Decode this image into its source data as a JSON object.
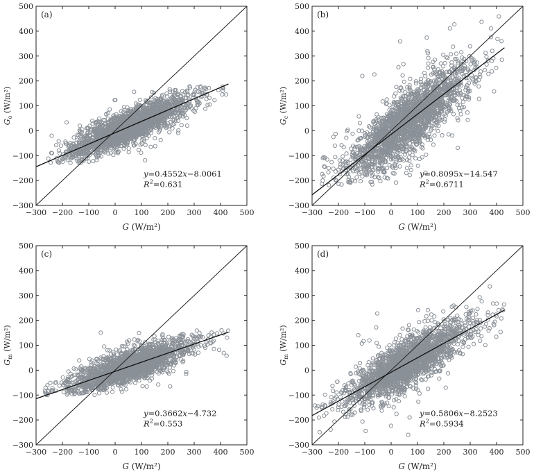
{
  "figure": {
    "x_axis_title": "G",
    "x_axis_unit": "(W/m²)",
    "y_axis_unit": "(W/m²)"
  },
  "chart_data": [
    {
      "type": "scatter",
      "panel": "(a)",
      "ylabel_symbol": "G",
      "ylabel_sub": "o",
      "xlim": [
        -300,
        500
      ],
      "ylim": [
        -300,
        500
      ],
      "xticks": [
        -300,
        -200,
        -100,
        0,
        100,
        200,
        300,
        400,
        500
      ],
      "yticks": [
        -300,
        -200,
        -100,
        0,
        100,
        200,
        300,
        400,
        500
      ],
      "fit": {
        "slope": 0.4552,
        "intercept": -8.0061,
        "x_range": [
          -300,
          430
        ]
      },
      "identity_line": true,
      "equation_line": "y=0.4552x−8.0061",
      "r2_value": "=0.631",
      "cloud": {
        "x_min": -270,
        "x_max": 430,
        "residual_sd": 32,
        "center_x": 50,
        "spread_x": 110,
        "n": 2200,
        "y_floor": -130,
        "y_ceil": 180
      },
      "point_color": "#8a9097"
    },
    {
      "type": "scatter",
      "panel": "(b)",
      "ylabel_symbol": "G",
      "ylabel_sub": "c",
      "xlim": [
        -300,
        500
      ],
      "ylim": [
        -300,
        500
      ],
      "xticks": [
        -300,
        -200,
        -100,
        0,
        100,
        200,
        300,
        400,
        500
      ],
      "yticks": [
        -300,
        -200,
        -100,
        0,
        100,
        200,
        300,
        400,
        500
      ],
      "fit": {
        "slope": 0.8095,
        "intercept": -14.547,
        "x_range": [
          -300,
          430
        ]
      },
      "identity_line": true,
      "equation_line": "y=0.8095x−14.547",
      "r2_value": "=0.6711",
      "cloud": {
        "x_min": -280,
        "x_max": 430,
        "residual_sd": 60,
        "center_x": 60,
        "spread_x": 110,
        "n": 2200,
        "y_floor": -220,
        "y_ceil": 490
      },
      "point_color": "#8a9097"
    },
    {
      "type": "scatter",
      "panel": "(c)",
      "ylabel_symbol": "G",
      "ylabel_sub": "m",
      "xlim": [
        -300,
        500
      ],
      "ylim": [
        -300,
        500
      ],
      "xticks": [
        -300,
        -200,
        -100,
        0,
        100,
        200,
        300,
        400,
        500
      ],
      "yticks": [
        -300,
        -200,
        -100,
        0,
        100,
        200,
        300,
        400,
        500
      ],
      "fit": {
        "slope": 0.3662,
        "intercept": -4.732,
        "x_range": [
          -300,
          430
        ]
      },
      "identity_line": true,
      "equation_line": "y=0.3662x−4.732",
      "r2_value": "=0.553",
      "cloud": {
        "x_min": -290,
        "x_max": 430,
        "residual_sd": 30,
        "center_x": 50,
        "spread_x": 110,
        "n": 2200,
        "y_floor": -100,
        "y_ceil": 160
      },
      "point_color": "#8a9097"
    },
    {
      "type": "scatter",
      "panel": "(d)",
      "ylabel_symbol": "G",
      "ylabel_sub": "m",
      "xlim": [
        -300,
        500
      ],
      "ylim": [
        -300,
        500
      ],
      "xticks": [
        -300,
        -200,
        -100,
        0,
        100,
        200,
        300,
        400,
        500
      ],
      "yticks": [
        -300,
        -200,
        -100,
        0,
        100,
        200,
        300,
        400,
        500
      ],
      "fit": {
        "slope": 0.5806,
        "intercept": -8.2523,
        "x_range": [
          -300,
          430
        ]
      },
      "identity_line": true,
      "equation_line": "y=0.5806x−8.2523",
      "r2_value": "=0.5934",
      "cloud": {
        "x_min": -290,
        "x_max": 430,
        "residual_sd": 45,
        "center_x": 60,
        "spread_x": 110,
        "n": 2200,
        "y_floor": -260,
        "y_ceil": 350
      },
      "point_color": "#8a9097"
    }
  ]
}
